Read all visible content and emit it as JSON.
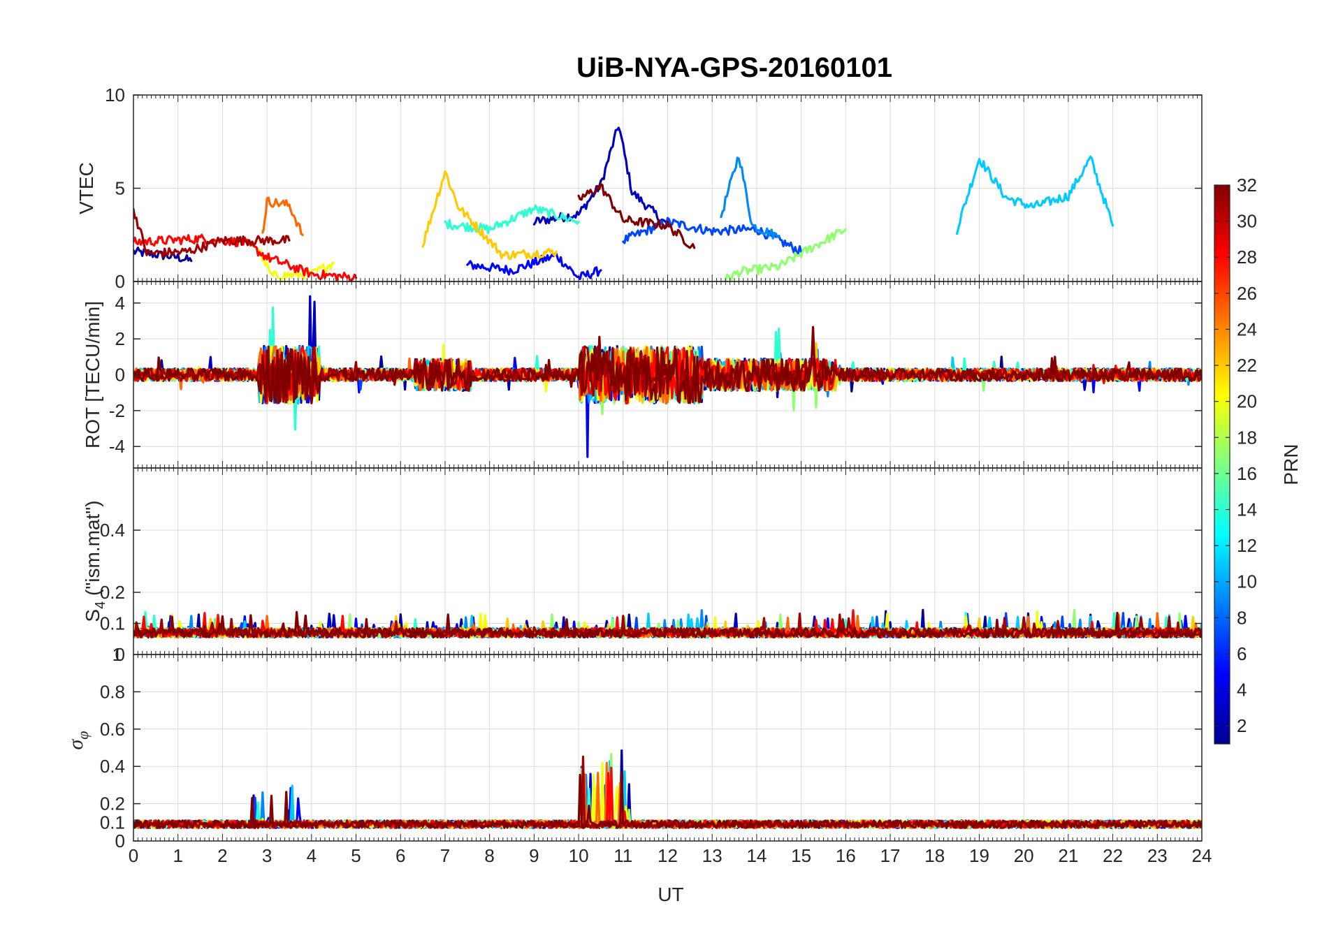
{
  "chart_data": {
    "type": "line",
    "title": "UiB-NYA-GPS-20160101",
    "xlabel": "UT",
    "x_ticks": [
      "0",
      "1",
      "2",
      "3",
      "4",
      "5",
      "6",
      "7",
      "8",
      "9",
      "10",
      "11",
      "12",
      "13",
      "14",
      "15",
      "16",
      "17",
      "18",
      "19",
      "20",
      "21",
      "22",
      "23",
      "24"
    ],
    "xlim": [
      0,
      24
    ],
    "panels": [
      {
        "id": "vtec",
        "ylabel": "VTEC",
        "ylim": [
          0,
          10
        ],
        "y_ticks": [
          "0",
          "5",
          "10"
        ]
      },
      {
        "id": "rot",
        "ylabel": "ROT [TECU/min]",
        "ylim": [
          -5.2,
          5.2
        ],
        "y_ticks": [
          "-4",
          "-2",
          "0",
          "2",
          "4"
        ]
      },
      {
        "id": "s4",
        "ylabel_main": "S",
        "ylabel_sub": "4",
        "ylabel_rest": " (\"ism.mat\")",
        "ylim": [
          0,
          0.6
        ],
        "y_ticks": [
          "0.1",
          "0.2",
          "0.4"
        ],
        "bottom_tick": "0",
        "overlap_tick": "1"
      },
      {
        "id": "sigphi",
        "ylabel_main": "σ",
        "ylabel_sub": "φ",
        "ylim": [
          0,
          1
        ],
        "y_ticks": [
          "0",
          "0.1",
          "0.2",
          "0.4",
          "0.6",
          "0.8"
        ]
      }
    ],
    "colorbar": {
      "label": "PRN",
      "range": [
        1,
        32
      ],
      "ticks": [
        "2",
        "4",
        "6",
        "8",
        "10",
        "12",
        "14",
        "16",
        "18",
        "20",
        "22",
        "24",
        "26",
        "28",
        "30",
        "32"
      ],
      "colormap": "jet"
    },
    "grid": true,
    "series_note_dummy_removed": null,
    "series": [
      {
        "prn": 2,
        "vtec": [
          [
            0,
            1.6
          ],
          [
            1,
            1.3
          ],
          [
            1.3,
            1.1
          ]
        ],
        "spikes": [
          10.9,
          11.0
        ]
      },
      {
        "prn": 3,
        "vtec": [
          [
            9,
            3.2
          ],
          [
            10,
            3.6
          ],
          [
            10.5,
            5.2
          ],
          [
            10.9,
            8.4
          ],
          [
            11.2,
            4.8
          ],
          [
            12,
            3.0
          ]
        ]
      },
      {
        "prn": 5,
        "vtec": [
          [
            7.5,
            0.9
          ],
          [
            8.5,
            0.6
          ],
          [
            9.5,
            1.4
          ],
          [
            10,
            0.2
          ],
          [
            10.5,
            0.6
          ]
        ]
      },
      {
        "prn": 7,
        "vtec": [
          [
            11,
            2.2
          ],
          [
            12,
            3.2
          ],
          [
            13,
            2.7
          ],
          [
            14,
            2.8
          ],
          [
            15,
            1.6
          ]
        ]
      },
      {
        "prn": 9,
        "vtec": [
          [
            13.2,
            3.5
          ],
          [
            13.6,
            6.8
          ],
          [
            13.9,
            3.0
          ],
          [
            14.5,
            2.4
          ]
        ]
      },
      {
        "prn": 11,
        "vtec": [
          [
            18.5,
            2.8
          ],
          [
            19,
            6.6
          ],
          [
            19.6,
            4.5
          ],
          [
            20.2,
            4.0
          ],
          [
            21,
            4.6
          ],
          [
            21.5,
            6.6
          ],
          [
            22,
            3.0
          ]
        ]
      },
      {
        "prn": 14,
        "vtec": [
          [
            7,
            3.1
          ],
          [
            8,
            2.8
          ],
          [
            9,
            3.9
          ],
          [
            10,
            3.2
          ]
        ]
      },
      {
        "prn": 17,
        "vtec": [
          [
            13.3,
            0.1
          ],
          [
            13.6,
            0.5
          ],
          [
            14.5,
            0.8
          ],
          [
            15.3,
            1.9
          ],
          [
            16,
            2.8
          ]
        ]
      },
      {
        "prn": 20,
        "vtec": [
          [
            2.8,
            1.8
          ],
          [
            3.1,
            0.3
          ],
          [
            4,
            0.4
          ],
          [
            4.5,
            1.0
          ]
        ]
      },
      {
        "prn": 22,
        "vtec": [
          [
            6.5,
            2.0
          ],
          [
            7.0,
            5.9
          ],
          [
            7.3,
            4.0
          ],
          [
            8.3,
            1.4
          ],
          [
            9.5,
            1.6
          ]
        ]
      },
      {
        "prn": 25,
        "vtec": [
          [
            2.9,
            2.5
          ],
          [
            3.0,
            4.3
          ],
          [
            3.5,
            4.1
          ],
          [
            3.8,
            2.5
          ]
        ]
      },
      {
        "prn": 28,
        "vtec": [
          [
            0,
            2.1
          ],
          [
            1.5,
            2.3
          ],
          [
            2.5,
            2.1
          ],
          [
            3,
            1.3
          ],
          [
            4,
            0.4
          ],
          [
            5,
            0.2
          ]
        ]
      },
      {
        "prn": 31,
        "vtec": [
          [
            0,
            3.9
          ],
          [
            0.3,
            1.5
          ],
          [
            1.2,
            1.6
          ],
          [
            2,
            2.2
          ],
          [
            3.5,
            2.2
          ]
        ]
      },
      {
        "prn": 32,
        "vtec": [
          [
            10,
            4.4
          ],
          [
            10.5,
            5.1
          ],
          [
            11,
            3.3
          ],
          [
            12,
            3.0
          ],
          [
            12.6,
            1.8
          ]
        ]
      }
    ]
  }
}
